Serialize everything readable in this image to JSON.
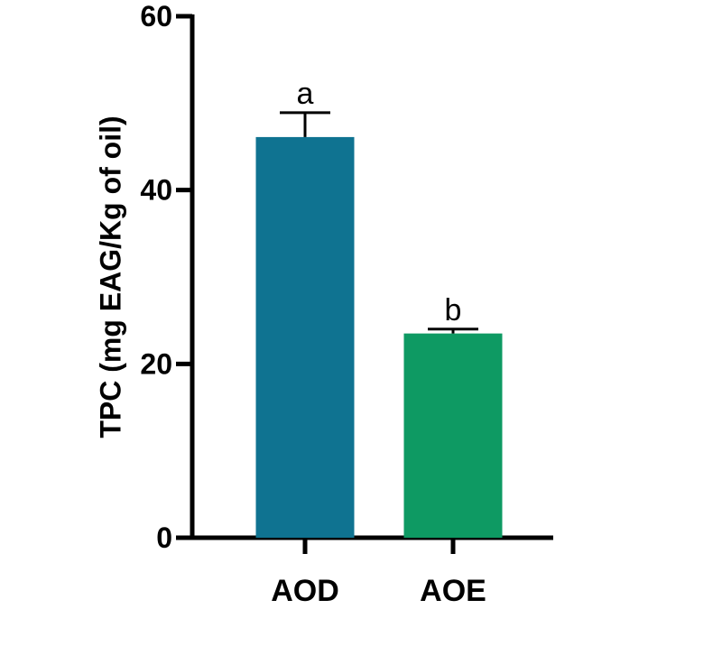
{
  "chart_data": {
    "type": "bar",
    "y_label": "TPC (mg EAG/Kg of oil)",
    "categories": [
      "AOD",
      "AOE"
    ],
    "values": [
      46.1,
      23.5
    ],
    "errors": [
      2.8,
      0.5
    ],
    "annotations": [
      "a",
      "b"
    ],
    "colors": [
      "#0f7391",
      "#0e9a63"
    ],
    "ylim": [
      0,
      60
    ],
    "yticks": [
      0,
      20,
      40,
      60
    ]
  }
}
